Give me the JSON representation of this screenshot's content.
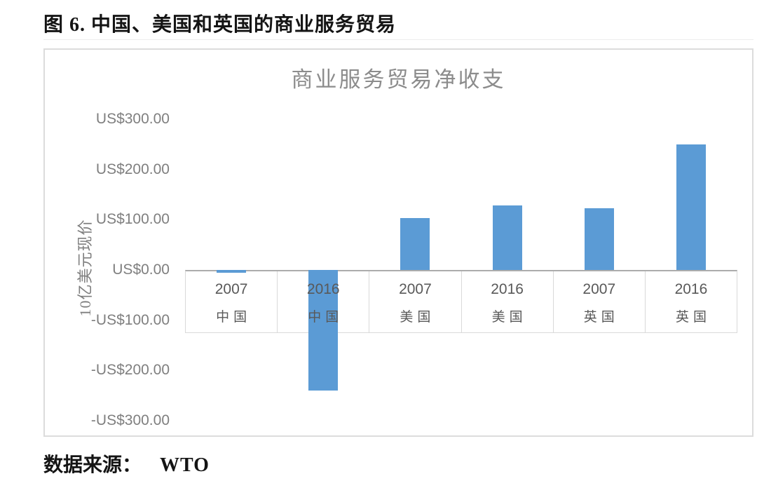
{
  "page": {
    "caption": "图 6. 中国、美国和英国的商业服务贸易",
    "source": {
      "label": "数据来源：",
      "value": "WTO"
    }
  },
  "chart_data": {
    "type": "bar",
    "title": "商业服务贸易净收支",
    "ylabel": "10亿美元现价",
    "categories": [
      {
        "year": "2007",
        "country": "中国"
      },
      {
        "year": "2016",
        "country": "中国"
      },
      {
        "year": "2007",
        "country": "美国"
      },
      {
        "year": "2016",
        "country": "美国"
      },
      {
        "year": "2007",
        "country": "英国"
      },
      {
        "year": "2016",
        "country": "英国"
      }
    ],
    "values": [
      -5,
      -240,
      103,
      129,
      123,
      250
    ],
    "ylim": [
      -300,
      300
    ],
    "ytick_step": 100,
    "ytick_labels": [
      "US$300.00",
      "US$200.00",
      "US$100.00",
      "US$0.00",
      "-US$100.00",
      "-US$200.00",
      "-US$300.00"
    ],
    "bar_color": "#5B9BD5",
    "grid": false,
    "legend": "none"
  }
}
